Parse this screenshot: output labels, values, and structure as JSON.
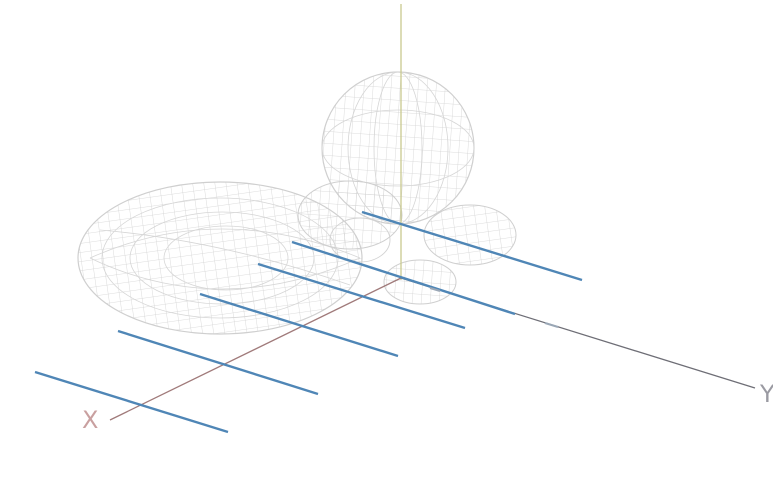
{
  "axes": {
    "x": {
      "label": "X",
      "color": "#c9a0a0",
      "line_color": "#a07a7a"
    },
    "y": {
      "label": "Y",
      "color": "#9a9aa2",
      "line_color": "#6e6e76"
    },
    "z": {
      "label": "",
      "color": "#c8c898",
      "line_color": "#c9c98f"
    }
  },
  "colors": {
    "background": "#ffffff",
    "mesh": "#d2d2d2",
    "elements": "#4f86b6"
  },
  "antenna": {
    "type": "yagi-uda-array",
    "element_count": 6
  },
  "radiation_pattern": {
    "style": "wireframe",
    "lobes": [
      "main-lobe",
      "back-lobe-vertical",
      "side-lobes"
    ]
  }
}
